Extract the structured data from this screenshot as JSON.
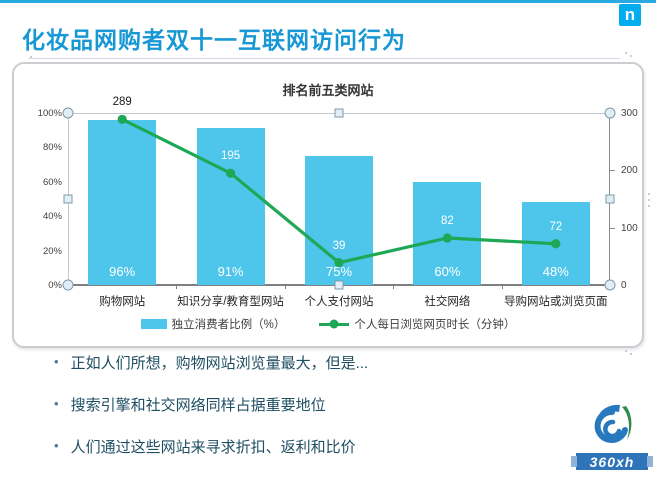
{
  "header": {
    "title": "化妆品网购者双十一互联网访问行为"
  },
  "nielsen_logo": "n",
  "chart_data": {
    "type": "combo",
    "title": "排名前五类网站",
    "categories": [
      "购物网站",
      "知识分享/教育型网站",
      "个人支付网站",
      "社交网络",
      "导购网站或浏览页面"
    ],
    "series": [
      {
        "name": "独立消费者比例（%）",
        "type": "bar",
        "axis": "left",
        "values": [
          96,
          91,
          75,
          60,
          48
        ],
        "labels": [
          "96%",
          "91%",
          "75%",
          "60%",
          "48%"
        ],
        "color": "#4EC5EB",
        "label_color": "#FFFFFF"
      },
      {
        "name": "个人每日浏览网页时长（分钟）",
        "type": "line",
        "axis": "right",
        "values": [
          289,
          195,
          39,
          82,
          72
        ],
        "labels": [
          "289",
          "195",
          "39",
          "82",
          "72"
        ],
        "color": "#1EA855"
      }
    ],
    "left_axis": {
      "min": 0,
      "max": 100,
      "ticks": [
        "100%",
        "80%",
        "60%",
        "40%",
        "20%",
        "0%"
      ]
    },
    "right_axis": {
      "min": 0,
      "max": 300,
      "ticks": [
        "300",
        "200",
        "100",
        "0"
      ]
    },
    "legend_position": "bottom",
    "grid": "top-line-only"
  },
  "bullets": [
    "正如人们所想，购物网站浏览量最大，但是...",
    "搜索引擎和社交网络同样占据重要地位",
    "人们通过这些网站来寻求折扣、返利和比价"
  ],
  "brand": {
    "name": "360xh"
  },
  "colors": {
    "accent": "#1798D4",
    "nielsen_blue": "#00AEEF",
    "bar": "#4EC5EB",
    "line_green": "#1EA855",
    "bullet_text": "#1F4E62"
  }
}
